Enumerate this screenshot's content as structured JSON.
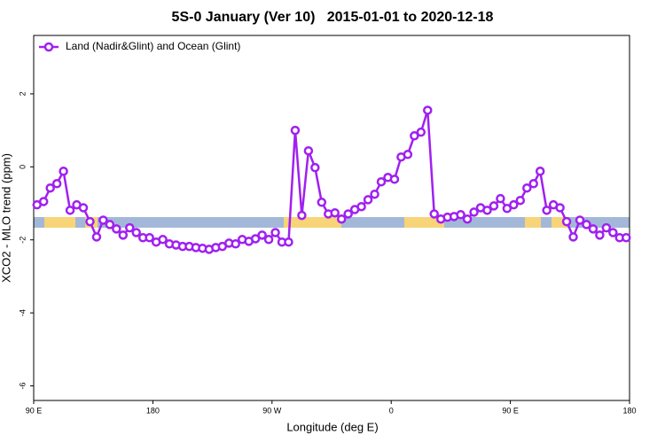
{
  "chart_data": {
    "type": "line",
    "title": "5S-0 January (Ver 10)   2015-01-01 to 2020-12-18",
    "x_label": "Longitude (deg E)",
    "y_label": "XCO2 - MLO trend (ppm)",
    "xlim": [
      -270,
      180
    ],
    "ylim": [
      -6.4,
      3.6
    ],
    "xticks": [
      {
        "value": -270,
        "label": "90 E"
      },
      {
        "value": -180,
        "label": "180"
      },
      {
        "value": -90,
        "label": "90 W"
      },
      0,
      {
        "value": 90,
        "label": "90 E"
      },
      180
    ],
    "yticks": [
      -6,
      -4,
      -2,
      0,
      2
    ],
    "grid": false,
    "legend": "upper left",
    "x": [
      -267.5,
      -262.5,
      -257.5,
      -252.5,
      -247.5,
      -242.5,
      -237.5,
      -232.5,
      -227.5,
      -222.5,
      -217.5,
      -212.5,
      -207.5,
      -202.5,
      -197.5,
      -192.5,
      -187.5,
      -182.5,
      -177.5,
      -172.5,
      -167.5,
      -162.5,
      -157.5,
      -152.5,
      -147.5,
      -142.5,
      -137.5,
      -132.5,
      -127.5,
      -122.5,
      -117.5,
      -112.5,
      -107.5,
      -102.5,
      -97.5,
      -92.5,
      -87.5,
      -82.5,
      -77.5,
      -72.5,
      -67.5,
      -62.5,
      -57.5,
      -52.5,
      -47.5,
      -42.5,
      -37.5,
      -32.5,
      -27.5,
      -22.5,
      -17.5,
      -12.5,
      -7.5,
      -2.5,
      2.5,
      7.5,
      12.5,
      17.5,
      22.5,
      27.5,
      32.5,
      37.5,
      42.5,
      47.5,
      52.5,
      57.5,
      62.5,
      67.5,
      72.5,
      77.5,
      82.5,
      87.5,
      92.5,
      97.5,
      102.5,
      107.5,
      112.5,
      117.5,
      122.5,
      127.5,
      132.5,
      137.5,
      142.5,
      147.5,
      152.5,
      157.5,
      162.5,
      167.5,
      172.5,
      177.5
    ],
    "series": [
      {
        "name": "Land (Nadir&Glint) and Ocean (Glint)",
        "color": "#a020f0",
        "values": [
          -1.04,
          -0.95,
          -0.58,
          -0.46,
          -0.12,
          -1.19,
          -1.04,
          -1.12,
          -1.5,
          -1.92,
          -1.46,
          -1.58,
          -1.7,
          -1.87,
          -1.67,
          -1.8,
          -1.94,
          -1.94,
          -2.06,
          -1.99,
          -2.11,
          -2.14,
          -2.18,
          -2.18,
          -2.21,
          -2.23,
          -2.26,
          -2.21,
          -2.18,
          -2.09,
          -2.11,
          -1.99,
          -2.04,
          -1.97,
          -1.87,
          -1.99,
          -1.8,
          -2.06,
          -2.06,
          1.0,
          -1.33,
          0.44,
          -0.02,
          -0.97,
          -1.29,
          -1.26,
          -1.43,
          -1.29,
          -1.17,
          -1.09,
          -0.9,
          -0.75,
          -0.41,
          -0.29,
          -0.34,
          0.27,
          0.34,
          0.85,
          0.95,
          1.55,
          -1.29,
          -1.43,
          -1.38,
          -1.36,
          -1.31,
          -1.43,
          -1.24,
          -1.12,
          -1.19,
          -1.07,
          -0.87,
          -1.14,
          -1.04,
          -0.92,
          -0.58,
          -0.46,
          -0.12,
          -1.19,
          -1.04,
          -1.12,
          -1.5,
          -1.92,
          -1.46,
          -1.58,
          -1.7,
          -1.87,
          -1.67,
          -1.8,
          -1.94,
          -1.94
        ]
      }
    ]
  }
}
